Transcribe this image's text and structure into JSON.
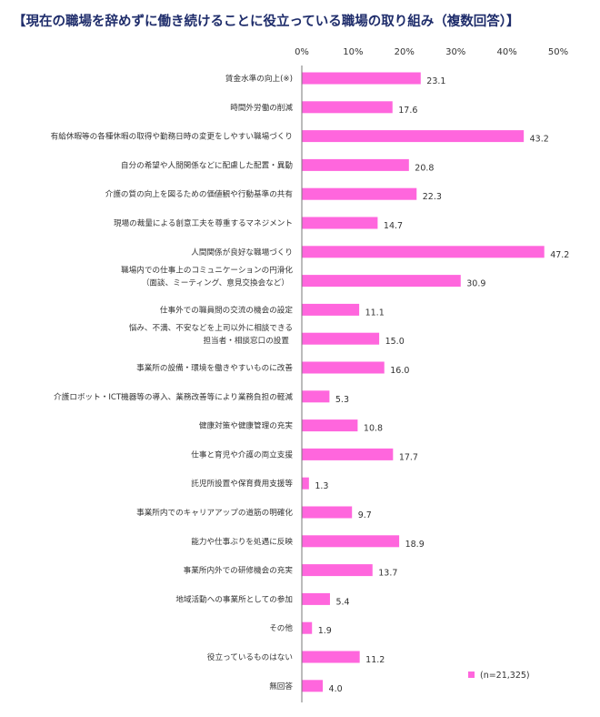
{
  "chart_data": {
    "type": "bar",
    "orientation": "horizontal",
    "title": "【現在の職場を辞めずに働き続けることに役立っている職場の取り組み（複数回答）】",
    "categories": [
      [
        "賃金水準の向上(※)"
      ],
      [
        "時間外労働の削減"
      ],
      [
        "有給休暇等の各種休暇の取得や勤務日時の変更をしやすい職場づくり"
      ],
      [
        "自分の希望や人間関係などに配慮した配置・異動"
      ],
      [
        "介護の質の向上を図るための価値観や行動基準の共有"
      ],
      [
        "現場の裁量による創意工夫を尊重するマネジメント"
      ],
      [
        "人間関係が良好な職場づくり"
      ],
      [
        "職場内での仕事上のコミュニケーションの円滑化",
        "（面談、ミーティング、意見交換会など）"
      ],
      [
        "仕事外での職員間の交流の機会の設定"
      ],
      [
        "悩み、不満、不安などを上司以外に相談できる",
        "担当者・相談窓口の設置"
      ],
      [
        "事業所の設備・環境を働きやすいものに改善"
      ],
      [
        "介護ロボット・ICT機器等の導入、業務改善等により業務負担の軽減"
      ],
      [
        "健康対策や健康管理の充実"
      ],
      [
        "仕事と育児や介護の両立支援"
      ],
      [
        "託児所設置や保育費用支援等"
      ],
      [
        "事業所内でのキャリアアップの道筋の明確化"
      ],
      [
        "能力や仕事ぶりを処遇に反映"
      ],
      [
        "事業所内外での研修機会の充実"
      ],
      [
        "地域活動への事業所としての参加"
      ],
      [
        "その他"
      ],
      [
        "役立っているものはない"
      ],
      [
        "無回答"
      ]
    ],
    "values": [
      23.1,
      17.6,
      43.2,
      20.8,
      22.3,
      14.7,
      47.2,
      30.9,
      11.1,
      15.0,
      16.0,
      5.3,
      10.8,
      17.7,
      1.3,
      9.7,
      18.9,
      13.7,
      5.4,
      1.9,
      11.2,
      4.0
    ],
    "value_labels": [
      "23.1",
      "17.6",
      "43.2",
      "20.8",
      "22.3",
      "14.7",
      "47.2",
      "30.9",
      "11.1",
      "15.0",
      "16.0",
      "5.3",
      "10.8",
      "17.7",
      "1.3",
      "9.7",
      "18.9",
      "13.7",
      "5.4",
      "1.9",
      "11.2",
      "4.0"
    ],
    "x_ticks": [
      "0%",
      "10%",
      "20%",
      "30%",
      "40%",
      "50%"
    ],
    "xlim": [
      0,
      50
    ],
    "legend": "(n=21,325)",
    "legend_placement": "bottom-right",
    "grid": false,
    "bar_color": "#ff66dd"
  }
}
